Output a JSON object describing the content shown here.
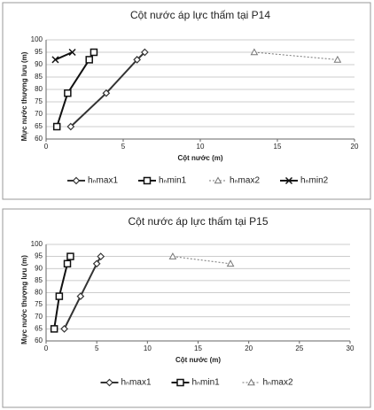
{
  "chart_data": [
    {
      "type": "line",
      "title": "Cột nước áp lực thấm tại P14",
      "x_label": "Cột nước (m)",
      "y_label": "Mực nước thượng lưu (m)",
      "xlim": [
        0,
        20
      ],
      "xticks": [
        0,
        5,
        10,
        15,
        20
      ],
      "ylim": [
        60,
        100
      ],
      "yticks": [
        60,
        65,
        70,
        75,
        80,
        85,
        90,
        95,
        100
      ],
      "grid": true,
      "legend": "bottom",
      "series": [
        {
          "name": "hₙmax1",
          "color": "#333333",
          "marker": "diamond",
          "x": [
            1.6,
            3.9,
            5.9,
            6.4
          ],
          "values": [
            65,
            78.5,
            92,
            95
          ]
        },
        {
          "name": "hₙmin1",
          "color": "#111111",
          "marker": "square",
          "x": [
            0.7,
            1.4,
            2.8,
            3.1
          ],
          "values": [
            65,
            78.5,
            92,
            95
          ]
        },
        {
          "name": "hₙmax2",
          "color": "#777777",
          "marker": "triangle",
          "dashed": true,
          "x": [
            13.5,
            18.9
          ],
          "values": [
            95,
            92
          ]
        },
        {
          "name": "hₙmin2",
          "color": "#111111",
          "marker": "cross",
          "x": [
            0.6,
            1.7
          ],
          "values": [
            92,
            95
          ]
        }
      ]
    },
    {
      "type": "line",
      "title": "Cột nước áp lực thấm tại P15",
      "x_label": "Cột nước (m)",
      "y_label": "Mực nước thượng lưu (m)",
      "xlim": [
        0,
        30
      ],
      "xticks": [
        0,
        5,
        10,
        15,
        20,
        25,
        30
      ],
      "ylim": [
        60,
        100
      ],
      "yticks": [
        60,
        65,
        70,
        75,
        80,
        85,
        90,
        95,
        100
      ],
      "grid": true,
      "legend": "bottom",
      "series": [
        {
          "name": "hₙmax1",
          "color": "#333333",
          "marker": "diamond",
          "x": [
            1.8,
            3.4,
            5,
            5.4
          ],
          "values": [
            65,
            78.5,
            92,
            95
          ]
        },
        {
          "name": "hₙmin1",
          "color": "#111111",
          "marker": "square",
          "x": [
            0.8,
            1.3,
            2.1,
            2.4
          ],
          "values": [
            65,
            78.5,
            92,
            95
          ]
        },
        {
          "name": "hₙmax2",
          "color": "#777777",
          "marker": "triangle",
          "dashed": true,
          "x": [
            12.5,
            18.2
          ],
          "values": [
            95,
            92
          ]
        }
      ]
    }
  ]
}
